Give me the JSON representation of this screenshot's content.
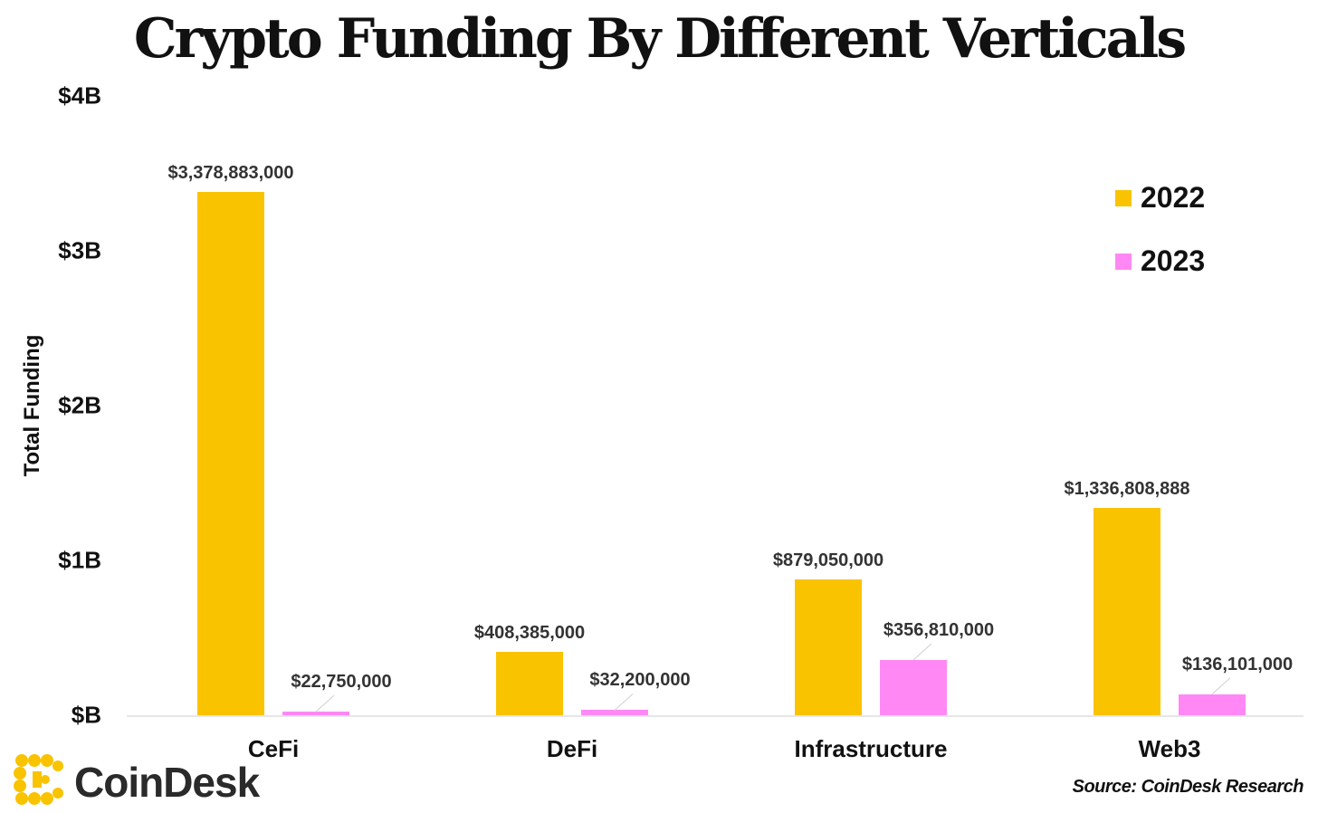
{
  "chart_data": {
    "type": "bar",
    "title": "Crypto Funding By Different Verticals",
    "ylabel": "Total Funding",
    "xlabel": "",
    "categories": [
      "CeFi",
      "DeFi",
      "Infrastructure",
      "Web3"
    ],
    "series": [
      {
        "name": "2022",
        "color": "#F9C300",
        "values": [
          3378883000,
          408385000,
          879050000,
          1336808888
        ],
        "labels": [
          "$3,378,883,000",
          "$408,385,000",
          "$879,050,000",
          "$1,336,808,888"
        ]
      },
      {
        "name": "2023",
        "color": "#FF88F5",
        "values": [
          22750000,
          32200000,
          356810000,
          136101000
        ],
        "labels": [
          "$22,750,000",
          "$32,200,000",
          "$356,810,000",
          "$136,101,000"
        ]
      }
    ],
    "ylim": [
      0,
      4000000000
    ],
    "yticks": [
      "$B",
      "$1B",
      "$2B",
      "$3B",
      "$4B"
    ],
    "ytick_values": [
      0,
      1000000000,
      2000000000,
      3000000000,
      4000000000
    ],
    "legend": "top-right",
    "grid": false
  },
  "source": "Source: CoinDesk Research",
  "brand": {
    "name": "CoinDesk",
    "logo_icon": "coindesk-logo-icon",
    "logo_color": "#F9C300"
  }
}
